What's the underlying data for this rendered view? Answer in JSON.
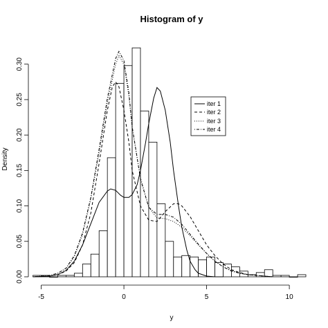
{
  "chart_data": {
    "type": "histogram",
    "title": "Histogram of y",
    "xlabel": "y",
    "ylabel": "Density",
    "xlim": [
      -5.4,
      11.0
    ],
    "ylim": [
      0,
      0.33
    ],
    "x_ticks": [
      -5,
      0,
      5,
      10
    ],
    "y_ticks": [
      0.0,
      0.05,
      0.1,
      0.15,
      0.2,
      0.25,
      0.3
    ],
    "y_tick_labels": [
      "0.00",
      "0.05",
      "0.10",
      "0.15",
      "0.20",
      "0.25",
      "0.30"
    ],
    "bin_width": 0.5,
    "bins": [
      {
        "x0": -5.5,
        "density": 0.002
      },
      {
        "x0": -5.0,
        "density": 0.002
      },
      {
        "x0": -4.5,
        "density": 0.0
      },
      {
        "x0": -4.0,
        "density": 0.002
      },
      {
        "x0": -3.5,
        "density": 0.002
      },
      {
        "x0": -3.0,
        "density": 0.005
      },
      {
        "x0": -2.5,
        "density": 0.018
      },
      {
        "x0": -2.0,
        "density": 0.032
      },
      {
        "x0": -1.5,
        "density": 0.065
      },
      {
        "x0": -1.0,
        "density": 0.168
      },
      {
        "x0": -0.5,
        "density": 0.273
      },
      {
        "x0": 0.0,
        "density": 0.298
      },
      {
        "x0": 0.5,
        "density": 0.323
      },
      {
        "x0": 1.0,
        "density": 0.234
      },
      {
        "x0": 1.5,
        "density": 0.19
      },
      {
        "x0": 2.0,
        "density": 0.103
      },
      {
        "x0": 2.5,
        "density": 0.05
      },
      {
        "x0": 3.0,
        "density": 0.028
      },
      {
        "x0": 3.5,
        "density": 0.03
      },
      {
        "x0": 4.0,
        "density": 0.028
      },
      {
        "x0": 4.5,
        "density": 0.024
      },
      {
        "x0": 5.0,
        "density": 0.028
      },
      {
        "x0": 5.5,
        "density": 0.02
      },
      {
        "x0": 6.0,
        "density": 0.018
      },
      {
        "x0": 6.5,
        "density": 0.014
      },
      {
        "x0": 7.0,
        "density": 0.008
      },
      {
        "x0": 7.5,
        "density": 0.003
      },
      {
        "x0": 8.0,
        "density": 0.006
      },
      {
        "x0": 8.5,
        "density": 0.01
      },
      {
        "x0": 9.0,
        "density": 0.002
      },
      {
        "x0": 9.5,
        "density": 0.002
      },
      {
        "x0": 10.0,
        "density": 0.0
      },
      {
        "x0": 10.5,
        "density": 0.003
      }
    ],
    "series": [
      {
        "name": "iter 1",
        "line_style": "solid",
        "x": [
          -5.5,
          -4.5,
          -4.0,
          -3.5,
          -3.0,
          -2.5,
          -2.0,
          -1.5,
          -1.0,
          -0.8,
          -0.5,
          -0.2,
          0.0,
          0.3,
          0.5,
          0.8,
          1.0,
          1.3,
          1.5,
          1.8,
          2.0,
          2.2,
          2.5,
          2.8,
          3.0,
          3.3,
          3.5,
          3.8,
          4.0,
          4.3,
          4.5,
          5.0,
          5.5,
          6.0
        ],
        "y": [
          0.0,
          0.001,
          0.003,
          0.009,
          0.022,
          0.045,
          0.075,
          0.105,
          0.121,
          0.124,
          0.122,
          0.115,
          0.112,
          0.112,
          0.116,
          0.13,
          0.15,
          0.188,
          0.216,
          0.252,
          0.267,
          0.262,
          0.235,
          0.19,
          0.15,
          0.1,
          0.07,
          0.038,
          0.022,
          0.01,
          0.005,
          0.001,
          0.0,
          0.0
        ]
      },
      {
        "name": "iter 2",
        "line_style": "dashed",
        "x": [
          -5.5,
          -4.5,
          -4.0,
          -3.5,
          -3.0,
          -2.5,
          -2.0,
          -1.5,
          -1.0,
          -0.7,
          -0.5,
          -0.3,
          0.0,
          0.3,
          0.5,
          1.0,
          1.5,
          2.0,
          2.5,
          3.0,
          3.3,
          3.5,
          4.0,
          4.5,
          5.0,
          5.5,
          6.0,
          6.5,
          7.0,
          7.5,
          8.0,
          8.5,
          9.0
        ],
        "y": [
          0.0,
          0.001,
          0.003,
          0.008,
          0.02,
          0.045,
          0.09,
          0.16,
          0.235,
          0.268,
          0.275,
          0.268,
          0.235,
          0.19,
          0.15,
          0.1,
          0.08,
          0.078,
          0.092,
          0.103,
          0.103,
          0.1,
          0.085,
          0.065,
          0.045,
          0.03,
          0.018,
          0.01,
          0.006,
          0.003,
          0.002,
          0.001,
          0.0
        ]
      },
      {
        "name": "iter 3",
        "line_style": "dotted",
        "x": [
          -5.5,
          -4.5,
          -4.0,
          -3.5,
          -3.0,
          -2.5,
          -2.0,
          -1.5,
          -1.0,
          -0.5,
          -0.3,
          0.0,
          0.3,
          0.5,
          1.0,
          1.5,
          2.0,
          2.5,
          3.0,
          3.5,
          4.0,
          4.5,
          5.0,
          5.5,
          6.0,
          6.5,
          7.0,
          7.5,
          8.0,
          8.5,
          9.0
        ],
        "y": [
          0.0,
          0.002,
          0.005,
          0.012,
          0.028,
          0.06,
          0.11,
          0.175,
          0.245,
          0.3,
          0.312,
          0.3,
          0.255,
          0.21,
          0.14,
          0.098,
          0.083,
          0.082,
          0.078,
          0.07,
          0.058,
          0.045,
          0.033,
          0.022,
          0.014,
          0.009,
          0.005,
          0.003,
          0.002,
          0.001,
          0.0
        ]
      },
      {
        "name": "iter 4",
        "line_style": "dotdash",
        "x": [
          -5.5,
          -4.5,
          -4.0,
          -3.5,
          -3.0,
          -2.5,
          -2.0,
          -1.5,
          -1.0,
          -0.5,
          -0.3,
          0.0,
          0.3,
          0.5,
          1.0,
          1.5,
          2.0,
          2.5,
          3.0,
          3.5,
          4.0,
          4.5,
          5.0,
          5.5,
          6.0,
          6.5,
          7.0,
          7.5,
          8.0,
          8.5,
          9.0
        ],
        "y": [
          0.0,
          0.002,
          0.005,
          0.012,
          0.03,
          0.062,
          0.112,
          0.18,
          0.252,
          0.308,
          0.318,
          0.305,
          0.26,
          0.212,
          0.138,
          0.098,
          0.088,
          0.088,
          0.084,
          0.074,
          0.06,
          0.046,
          0.033,
          0.022,
          0.014,
          0.008,
          0.005,
          0.003,
          0.002,
          0.001,
          0.0
        ]
      }
    ],
    "legend": {
      "position": "top-right",
      "entries": [
        "iter 1",
        "iter 2",
        "iter 3",
        "iter 4"
      ]
    }
  }
}
